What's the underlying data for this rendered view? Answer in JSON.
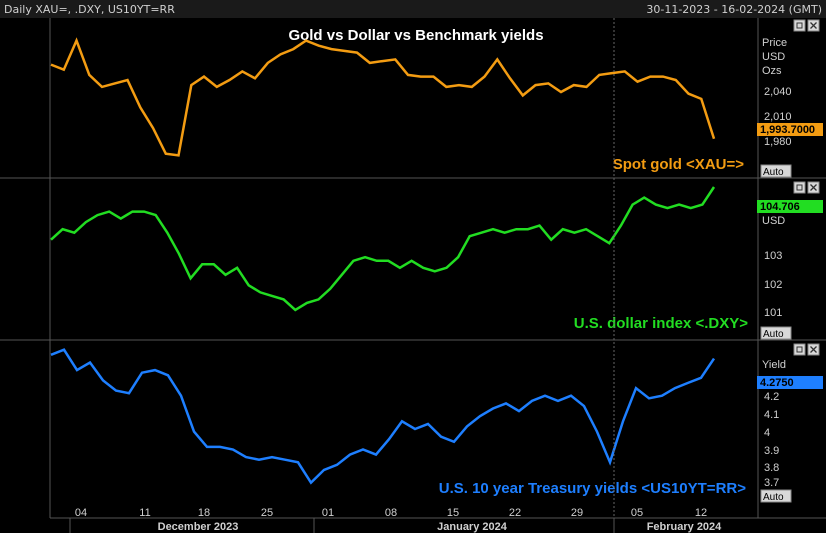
{
  "header": {
    "left": "Daily XAU=, .DXY, US10YT=RR",
    "right": "30-11-2023 - 16-02-2024 (GMT)"
  },
  "title": "Gold vs Dollar vs Benchmark yields",
  "panels": [
    {
      "unit_lines": [
        "Price",
        "USD",
        "Ozs"
      ],
      "label": "Spot gold <XAU=>",
      "ticks": [
        "2,040",
        "2,010",
        "1,980"
      ],
      "last_value": "1,993.7000",
      "auto": "Auto"
    },
    {
      "unit_lines": [
        "USD"
      ],
      "label": "U.S. dollar index <.DXY>",
      "ticks": [
        "103",
        "102",
        "101"
      ],
      "last_value": "104.706",
      "auto": "Auto"
    },
    {
      "unit_lines": [
        "Yield"
      ],
      "label": "U.S. 10 year Treasury yields <US10YT=RR>",
      "ticks": [
        "4.2",
        "4.1",
        "4",
        "3.9",
        "3.8",
        "3.7"
      ],
      "last_value": "4.2750",
      "auto": "Auto"
    }
  ],
  "xaxis": {
    "day_ticks": [
      "04",
      "11",
      "18",
      "25",
      "01",
      "08",
      "15",
      "22",
      "29",
      "05",
      "12"
    ],
    "month_labels": [
      "December 2023",
      "January 2024",
      "February 2024"
    ]
  },
  "colors": {
    "background": "#000000",
    "panel_border": "#555555",
    "text": "#d0d0d0",
    "gold": "#f39c12",
    "dollar": "#22dd22",
    "yield": "#1e7fff"
  },
  "chart_data": [
    {
      "type": "line",
      "title": "Gold vs Dollar vs Benchmark yields",
      "series": [
        {
          "name": "Spot gold <XAU=>",
          "values": [
            2037,
            2034,
            2051,
            2031,
            2024,
            2026,
            2028,
            2012,
            2000,
            1985,
            1984,
            2025,
            2030,
            2024,
            2028,
            2033,
            2029,
            2038,
            2043,
            2046,
            2051,
            2048,
            2046,
            2045,
            2044,
            2038,
            2039,
            2040,
            2031,
            2030,
            2030,
            2024,
            2025,
            2024,
            2030,
            2040,
            2029,
            2019,
            2025,
            2026,
            2021,
            2025,
            2024,
            2031,
            2032,
            2033,
            2027,
            2030,
            2030,
            2028,
            2020,
            2017,
            1993.7
          ]
        }
      ],
      "ylim": [
        1972,
        2063
      ]
    },
    {
      "type": "line",
      "series": [
        {
          "name": "U.S. dollar index <.DXY>",
          "values": [
            103.2,
            103.5,
            103.4,
            103.7,
            103.9,
            104.0,
            103.8,
            104.0,
            104.0,
            103.9,
            103.4,
            102.8,
            102.1,
            102.5,
            102.5,
            102.2,
            102.4,
            101.9,
            101.7,
            101.6,
            101.5,
            101.2,
            101.4,
            101.5,
            101.8,
            102.2,
            102.6,
            102.7,
            102.6,
            102.6,
            102.4,
            102.6,
            102.4,
            102.3,
            102.4,
            102.7,
            103.3,
            103.4,
            103.5,
            103.4,
            103.5,
            103.5,
            103.6,
            103.2,
            103.5,
            103.4,
            103.5,
            103.3,
            103.1,
            103.6,
            104.2,
            104.4,
            104.2,
            104.1,
            104.2,
            104.1,
            104.2,
            104.7
          ]
        }
      ],
      "ylim": [
        100.4,
        104.9
      ]
    },
    {
      "type": "line",
      "series": [
        {
          "name": "U.S. 10 year Treasury yields <US10YT=RR>",
          "values": [
            4.29,
            4.31,
            4.23,
            4.26,
            4.19,
            4.15,
            4.14,
            4.22,
            4.23,
            4.21,
            4.13,
            3.99,
            3.93,
            3.93,
            3.92,
            3.89,
            3.88,
            3.89,
            3.88,
            3.87,
            3.79,
            3.84,
            3.86,
            3.9,
            3.92,
            3.9,
            3.96,
            4.03,
            4.0,
            4.02,
            3.97,
            3.95,
            4.01,
            4.05,
            4.08,
            4.1,
            4.07,
            4.11,
            4.13,
            4.11,
            4.13,
            4.09,
            3.99,
            3.87,
            4.03,
            4.16,
            4.12,
            4.13,
            4.16,
            4.18,
            4.2,
            4.275
          ]
        }
      ],
      "ylim": [
        3.66,
        4.34
      ]
    }
  ]
}
